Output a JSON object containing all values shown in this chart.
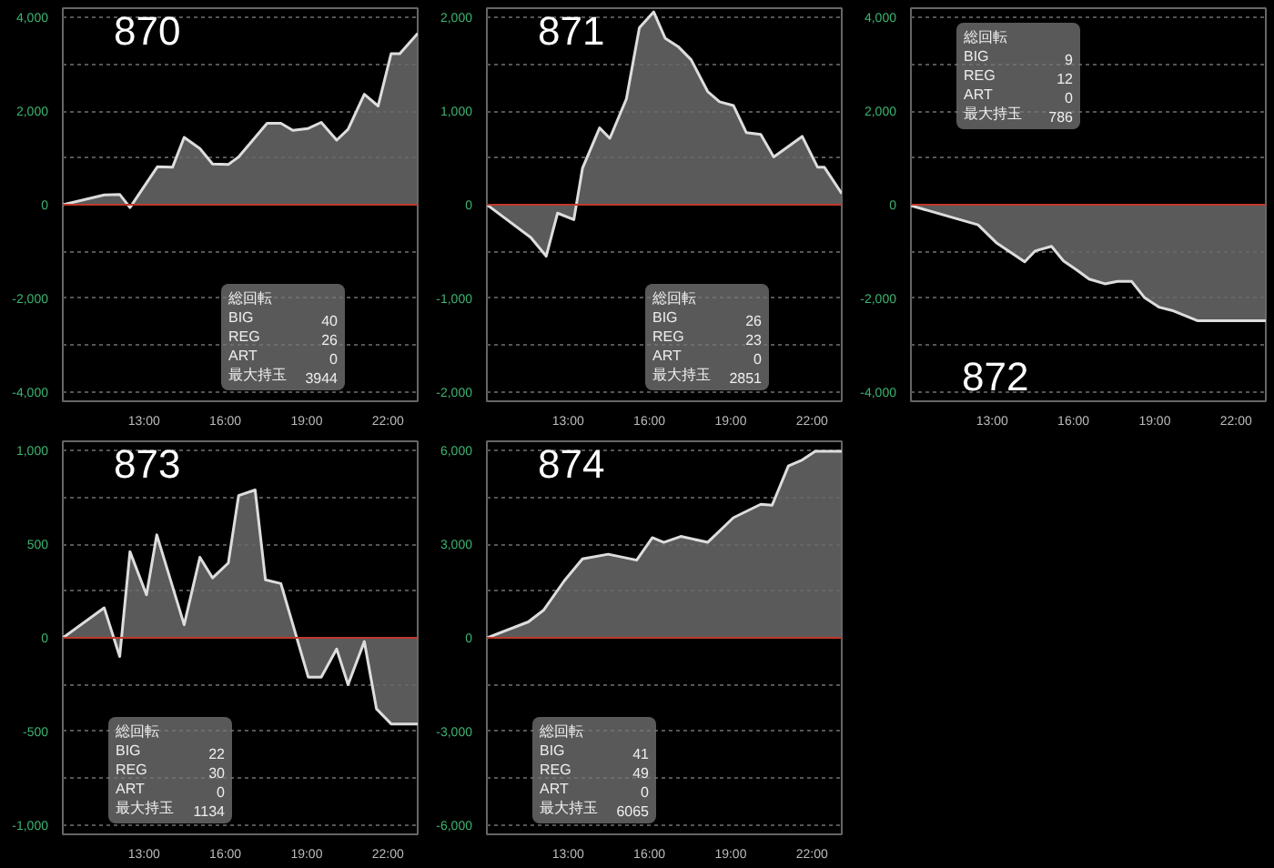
{
  "chart_data": [
    {
      "type": "area",
      "title": "870",
      "x": [
        10.0,
        11.53,
        12.1,
        12.48,
        13.49,
        14.05,
        14.48,
        15.06,
        15.53,
        16.11,
        16.49,
        17.54,
        18.05,
        18.49,
        19.06,
        19.54,
        20.11,
        20.53,
        21.13,
        21.64,
        22.12,
        22.44,
        23.1
      ],
      "series": [
        {
          "color": "#dddddd",
          "values": [
            0,
            210,
            220,
            -60,
            810,
            800,
            1440,
            1200,
            870,
            860,
            1020,
            1740,
            1740,
            1590,
            1630,
            1760,
            1380,
            1610,
            2360,
            2110,
            3230,
            3230,
            3660
          ]
        }
      ],
      "xlim": [
        10,
        23.1
      ],
      "xticks": [
        {
          "value": 13,
          "label": "13:00"
        },
        {
          "value": 16,
          "label": "16:00"
        },
        {
          "value": 19,
          "label": "19:00"
        },
        {
          "value": 22,
          "label": "22:00"
        }
      ],
      "ylim": [
        -4200,
        4200
      ],
      "yticks": [
        {
          "value": -4000,
          "label": "-4,000"
        },
        {
          "value": -3000,
          "label": null
        },
        {
          "value": -2000,
          "label": "-2,000"
        },
        {
          "value": -1000,
          "label": null
        },
        0,
        {
          "value": 1000,
          "label": null
        },
        {
          "value": 2000,
          "label": "2,000"
        },
        {
          "value": 3000,
          "label": null
        },
        {
          "value": 4000,
          "label": "4,000"
        }
      ],
      "grid": "y",
      "ref_lines": [
        {
          "axis": "y",
          "value": 0,
          "color": "#c0392b"
        }
      ],
      "annotations": [
        "総回転",
        "BIG 40",
        "REG 26",
        "ART 0",
        "最大持玉 3944"
      ]
    },
    {
      "type": "area",
      "title": "871",
      "x": [
        10.0,
        11.62,
        12.19,
        12.61,
        13.21,
        13.53,
        14.16,
        14.54,
        15.15,
        15.63,
        16.16,
        16.58,
        17.06,
        17.54,
        18.15,
        18.59,
        19.1,
        19.58,
        20.11,
        20.59,
        21.64,
        22.21,
        22.46,
        23.1
      ],
      "series": [
        {
          "color": "#dddddd",
          "values": [
            0,
            -350,
            -550,
            -90,
            -160,
            390,
            820,
            710,
            1130,
            1890,
            2060,
            1780,
            1690,
            1550,
            1210,
            1100,
            1060,
            770,
            750,
            510,
            730,
            400,
            400,
            120
          ]
        }
      ],
      "xlim": [
        10,
        23.1
      ],
      "xticks": [
        {
          "value": 13,
          "label": "13:00"
        },
        {
          "value": 16,
          "label": "16:00"
        },
        {
          "value": 19,
          "label": "19:00"
        },
        {
          "value": 22,
          "label": "22:00"
        }
      ],
      "ylim": [
        -2100,
        2100
      ],
      "yticks": [
        {
          "value": -2000,
          "label": "-2,000"
        },
        {
          "value": -1500,
          "label": null
        },
        {
          "value": -1000,
          "label": "-1,000"
        },
        {
          "value": -500,
          "label": null
        },
        0,
        {
          "value": 500,
          "label": null
        },
        {
          "value": 1000,
          "label": "1,000"
        },
        {
          "value": 1500,
          "label": null
        },
        {
          "value": 2000,
          "label": "2,000"
        }
      ],
      "grid": "y",
      "ref_lines": [
        {
          "axis": "y",
          "value": 0,
          "color": "#c0392b"
        }
      ],
      "annotations": [
        "総回転",
        "BIG 26",
        "REG 23",
        "ART 0",
        "最大持玉 2851"
      ]
    },
    {
      "type": "area",
      "title": "872",
      "x": [
        10.0,
        12.48,
        13.15,
        14.2,
        14.58,
        15.19,
        15.63,
        16.11,
        16.58,
        17.16,
        17.63,
        18.15,
        18.63,
        19.16,
        19.64,
        20.59,
        23.1
      ],
      "series": [
        {
          "color": "#dddddd",
          "values": [
            -20,
            -430,
            -810,
            -1220,
            -990,
            -890,
            -1200,
            -1390,
            -1590,
            -1690,
            -1640,
            -1640,
            -1990,
            -2190,
            -2260,
            -2480,
            -2480
          ]
        }
      ],
      "xlim": [
        10,
        23.1
      ],
      "xticks": [
        {
          "value": 13,
          "label": "13:00"
        },
        {
          "value": 16,
          "label": "16:00"
        },
        {
          "value": 19,
          "label": "19:00"
        },
        {
          "value": 22,
          "label": "22:00"
        }
      ],
      "ylim": [
        -4200,
        4200
      ],
      "yticks": [
        {
          "value": -4000,
          "label": "-4,000"
        },
        {
          "value": -3000,
          "label": null
        },
        {
          "value": -2000,
          "label": "-2,000"
        },
        {
          "value": -1000,
          "label": null
        },
        0,
        {
          "value": 1000,
          "label": null
        },
        {
          "value": 2000,
          "label": "2,000"
        },
        {
          "value": 3000,
          "label": null
        },
        {
          "value": 4000,
          "label": "4,000"
        }
      ],
      "grid": "y",
      "ref_lines": [
        {
          "axis": "y",
          "value": 0,
          "color": "#c0392b"
        }
      ],
      "annotations": [
        "総回転",
        "BIG 9",
        "REG 12",
        "ART 0",
        "最大持玉 786"
      ]
    },
    {
      "type": "area",
      "title": "873",
      "x": [
        10.0,
        11.53,
        12.1,
        12.48,
        13.09,
        13.47,
        14.48,
        15.06,
        15.53,
        16.11,
        16.49,
        17.1,
        17.48,
        18.05,
        19.06,
        19.54,
        20.11,
        20.53,
        21.13,
        21.58,
        22.12,
        23.1
      ],
      "series": [
        {
          "color": "#dddddd",
          "values": [
            0,
            160,
            -100,
            460,
            230,
            550,
            70,
            430,
            320,
            400,
            760,
            790,
            310,
            290,
            -210,
            -210,
            -60,
            -250,
            -20,
            -380,
            -460,
            -460
          ]
        }
      ],
      "xlim": [
        10,
        23.1
      ],
      "xticks": [
        {
          "value": 13,
          "label": "13:00"
        },
        {
          "value": 16,
          "label": "16:00"
        },
        {
          "value": 19,
          "label": "19:00"
        },
        {
          "value": 22,
          "label": "22:00"
        }
      ],
      "ylim": [
        -1050,
        1050
      ],
      "yticks": [
        {
          "value": -1000,
          "label": "-1,000"
        },
        {
          "value": -750,
          "label": null
        },
        {
          "value": -500,
          "label": "-500"
        },
        {
          "value": -250,
          "label": null
        },
        0,
        {
          "value": 250,
          "label": null
        },
        {
          "value": 500,
          "label": "500"
        },
        {
          "value": 750,
          "label": null
        },
        {
          "value": 1000,
          "label": "1,000"
        }
      ],
      "grid": "y",
      "ref_lines": [
        {
          "axis": "y",
          "value": 0,
          "color": "#c0392b"
        }
      ],
      "annotations": [
        "総回転",
        "BIG 22",
        "REG 30",
        "ART 0",
        "最大持玉 1134"
      ]
    },
    {
      "type": "area",
      "title": "874",
      "x": [
        10.0,
        11.53,
        12.1,
        12.86,
        13.53,
        14.48,
        15.53,
        16.11,
        16.53,
        17.16,
        18.15,
        19.1,
        20.11,
        20.53,
        21.13,
        21.64,
        22.12,
        23.1
      ],
      "series": [
        {
          "color": "#dddddd",
          "values": [
            0,
            510,
            890,
            1830,
            2530,
            2680,
            2490,
            3210,
            3060,
            3250,
            3060,
            3850,
            4280,
            4250,
            5510,
            5700,
            5980,
            5980
          ]
        }
      ],
      "xlim": [
        10,
        23.1
      ],
      "xticks": [
        {
          "value": 13,
          "label": "13:00"
        },
        {
          "value": 16,
          "label": "16:00"
        },
        {
          "value": 19,
          "label": "19:00"
        },
        {
          "value": 22,
          "label": "22:00"
        }
      ],
      "ylim": [
        -6300,
        6300
      ],
      "yticks": [
        {
          "value": -6000,
          "label": "-6,000"
        },
        {
          "value": -4500,
          "label": null
        },
        {
          "value": -3000,
          "label": "-3,000"
        },
        {
          "value": -1500,
          "label": null
        },
        0,
        {
          "value": 1500,
          "label": null
        },
        {
          "value": 3000,
          "label": "3,000"
        },
        {
          "value": 4500,
          "label": null
        },
        {
          "value": 6000,
          "label": "6,000"
        }
      ],
      "grid": "y",
      "ref_lines": [
        {
          "axis": "y",
          "value": 0,
          "color": "#c0392b"
        }
      ],
      "annotations": [
        "総回転",
        "BIG 41",
        "REG 49",
        "ART 0",
        "最大持玉 6065"
      ]
    }
  ]
}
